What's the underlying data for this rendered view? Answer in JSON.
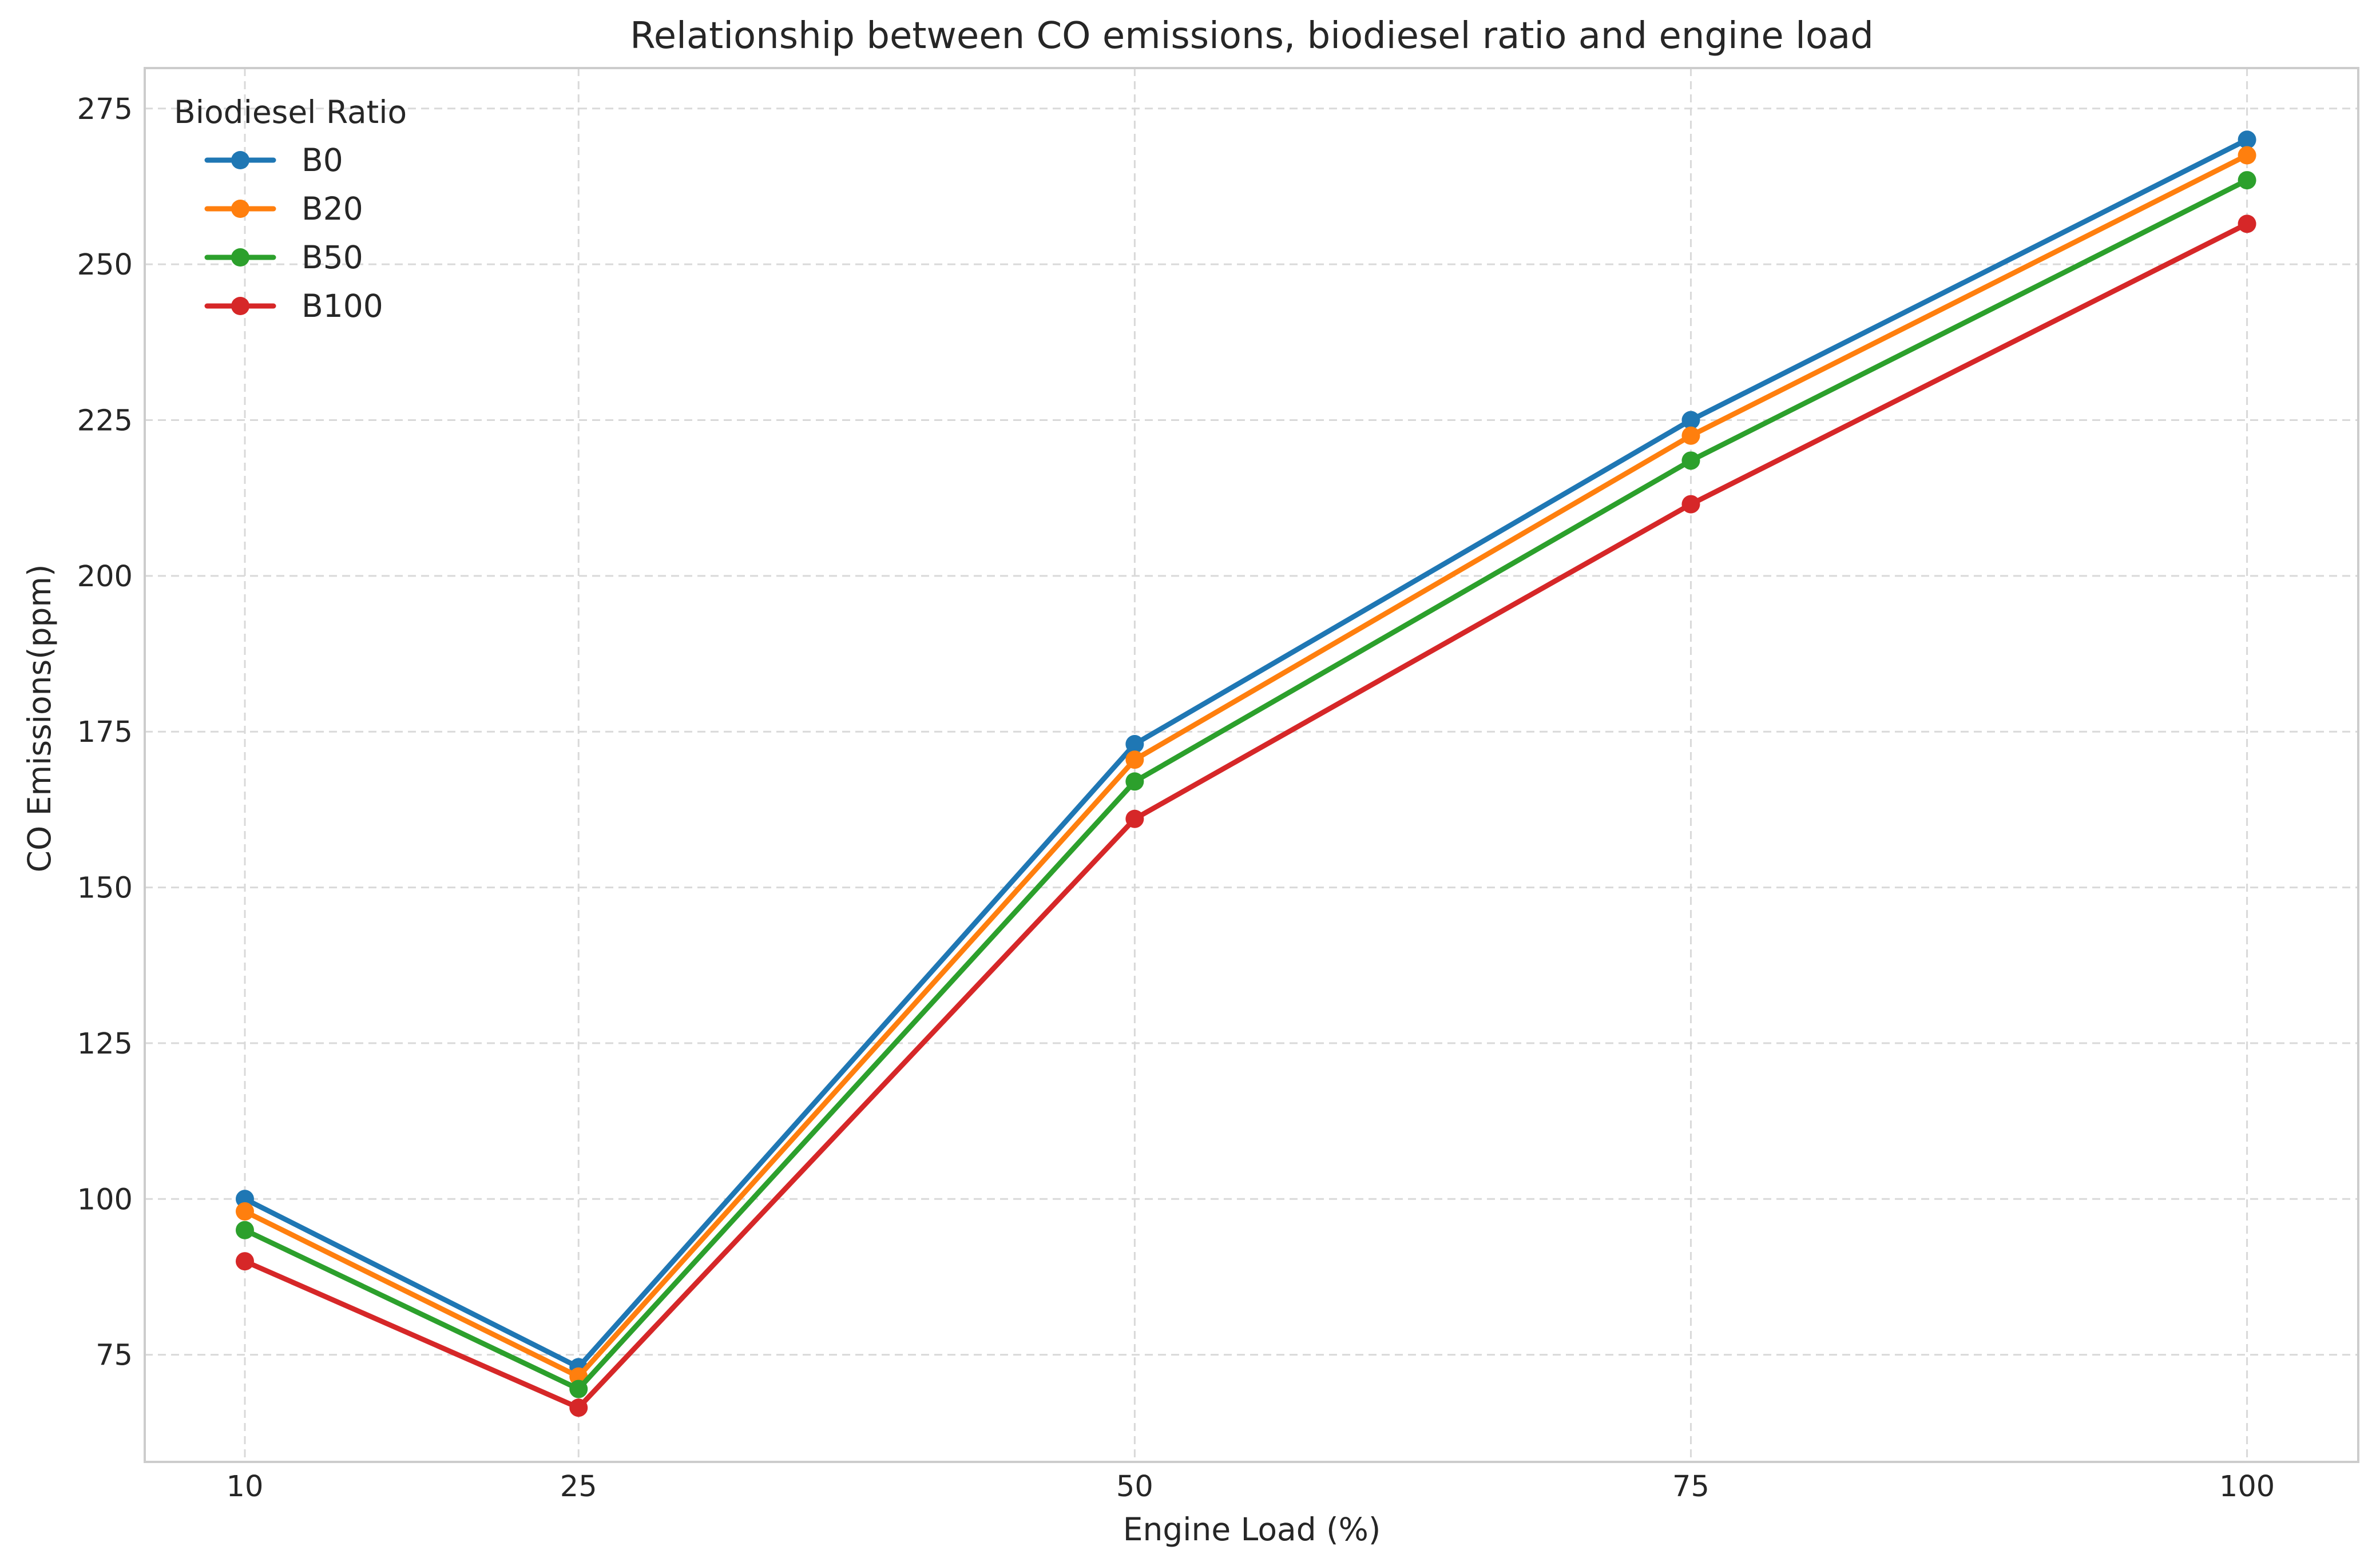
{
  "chart_data": {
    "type": "line",
    "title": "Relationship between CO emissions, biodiesel ratio and engine load",
    "xlabel": "Engine Load (%)",
    "ylabel": "CO Emissions(ppm)",
    "x": [
      10,
      25,
      50,
      75,
      100
    ],
    "x_ticks": [
      "10",
      "25",
      "50",
      "75",
      "100"
    ],
    "y_ticks": [
      "75",
      "100",
      "125",
      "150",
      "175",
      "200",
      "225",
      "250",
      "275"
    ],
    "xlim": [
      5.5,
      105
    ],
    "ylim": [
      57.8,
      281.5
    ],
    "grid": true,
    "markers": true,
    "legend": {
      "title": "Biodiesel Ratio",
      "placement": "top-left"
    },
    "series": [
      {
        "name": "B0",
        "color": "#1f77b4",
        "values": [
          100,
          73,
          173,
          225,
          270
        ]
      },
      {
        "name": "B20",
        "color": "#ff7f0e",
        "values": [
          98,
          71.5,
          170.5,
          222.5,
          267.5
        ]
      },
      {
        "name": "B50",
        "color": "#2ca02c",
        "values": [
          95,
          69.5,
          167,
          218.5,
          263.5
        ]
      },
      {
        "name": "B100",
        "color": "#d62728",
        "values": [
          90,
          66.5,
          161,
          211.5,
          256.5
        ]
      }
    ]
  }
}
